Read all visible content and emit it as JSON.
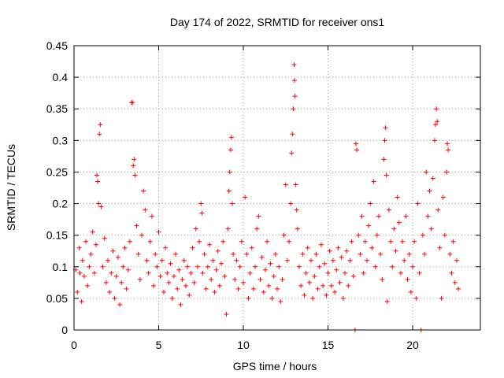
{
  "chart_data": {
    "type": "scatter",
    "title": "Day 174 of 2022, SRMTID for receiver ons1",
    "xlabel": "GPS time / hours",
    "ylabel": "SRMTID / TECUs",
    "xlim": [
      0,
      24
    ],
    "ylim": [
      0,
      0.45
    ],
    "x_ticks": [
      0,
      5,
      10,
      15,
      20
    ],
    "x_tick_labels": [
      "0",
      "5",
      "10",
      "15",
      "20"
    ],
    "y_ticks": [
      0,
      0.05,
      0.1,
      0.15,
      0.2,
      0.25,
      0.3,
      0.35,
      0.4,
      0.45
    ],
    "y_tick_labels": [
      "0",
      "0.05",
      "0.1",
      "0.15",
      "0.2",
      "0.25",
      "0.3",
      "0.35",
      "0.4",
      "0.45"
    ],
    "grid": true,
    "marker": "+",
    "color": "#ff0000",
    "series": [
      {
        "name": "SRMTID",
        "points": [
          [
            0.1,
            0.095
          ],
          [
            0.2,
            0.06
          ],
          [
            0.3,
            0.13
          ],
          [
            0.35,
            0.09
          ],
          [
            0.45,
            0.045
          ],
          [
            0.5,
            0.11
          ],
          [
            0.6,
            0.085
          ],
          [
            0.7,
            0.14
          ],
          [
            0.8,
            0.07
          ],
          [
            0.9,
            0.1
          ],
          [
            1.0,
            0.12
          ],
          [
            1.1,
            0.155
          ],
          [
            1.2,
            0.09
          ],
          [
            1.3,
            0.135
          ],
          [
            1.35,
            0.245
          ],
          [
            1.4,
            0.235
          ],
          [
            1.45,
            0.2
          ],
          [
            1.5,
            0.31
          ],
          [
            1.55,
            0.325
          ],
          [
            1.6,
            0.195
          ],
          [
            1.7,
            0.1
          ],
          [
            1.8,
            0.145
          ],
          [
            1.9,
            0.075
          ],
          [
            2.0,
            0.11
          ],
          [
            2.1,
            0.06
          ],
          [
            2.2,
            0.09
          ],
          [
            2.3,
            0.125
          ],
          [
            2.4,
            0.05
          ],
          [
            2.5,
            0.085
          ],
          [
            2.6,
            0.115
          ],
          [
            2.7,
            0.04
          ],
          [
            2.8,
            0.075
          ],
          [
            2.9,
            0.1
          ],
          [
            3.0,
            0.13
          ],
          [
            3.1,
            0.065
          ],
          [
            3.2,
            0.095
          ],
          [
            3.3,
            0.14
          ],
          [
            3.4,
            0.36
          ],
          [
            3.45,
            0.36
          ],
          [
            3.5,
            0.26
          ],
          [
            3.55,
            0.27
          ],
          [
            3.6,
            0.245
          ],
          [
            3.7,
            0.165
          ],
          [
            3.8,
            0.12
          ],
          [
            3.9,
            0.08
          ],
          [
            4.0,
            0.15
          ],
          [
            4.1,
            0.22
          ],
          [
            4.2,
            0.19
          ],
          [
            4.3,
            0.11
          ],
          [
            4.4,
            0.09
          ],
          [
            4.5,
            0.14
          ],
          [
            4.6,
            0.18
          ],
          [
            4.7,
            0.07
          ],
          [
            4.8,
            0.12
          ],
          [
            4.9,
            0.1
          ],
          [
            5.0,
            0.155
          ],
          [
            5.1,
            0.085
          ],
          [
            5.2,
            0.11
          ],
          [
            5.3,
            0.06
          ],
          [
            5.4,
            0.13
          ],
          [
            5.5,
            0.09
          ],
          [
            5.6,
            0.075
          ],
          [
            5.7,
            0.105
          ],
          [
            5.8,
            0.05
          ],
          [
            5.9,
            0.085
          ],
          [
            6.0,
            0.12
          ],
          [
            6.1,
            0.065
          ],
          [
            6.2,
            0.095
          ],
          [
            6.3,
            0.04
          ],
          [
            6.4,
            0.08
          ],
          [
            6.5,
            0.11
          ],
          [
            6.6,
            0.07
          ],
          [
            6.7,
            0.1
          ],
          [
            6.8,
            0.055
          ],
          [
            6.9,
            0.09
          ],
          [
            7.0,
            0.13
          ],
          [
            7.1,
            0.075
          ],
          [
            7.2,
            0.16
          ],
          [
            7.3,
            0.1
          ],
          [
            7.4,
            0.14
          ],
          [
            7.5,
            0.2
          ],
          [
            7.55,
            0.185
          ],
          [
            7.6,
            0.09
          ],
          [
            7.7,
            0.12
          ],
          [
            7.8,
            0.065
          ],
          [
            7.9,
            0.1
          ],
          [
            8.0,
            0.135
          ],
          [
            8.1,
            0.08
          ],
          [
            8.2,
            0.11
          ],
          [
            8.3,
            0.06
          ],
          [
            8.4,
            0.095
          ],
          [
            8.5,
            0.125
          ],
          [
            8.6,
            0.07
          ],
          [
            8.7,
            0.105
          ],
          [
            8.8,
            0.14
          ],
          [
            8.9,
            0.085
          ],
          [
            9.0,
            0.025
          ],
          [
            9.1,
            0.16
          ],
          [
            9.15,
            0.22
          ],
          [
            9.2,
            0.25
          ],
          [
            9.25,
            0.285
          ],
          [
            9.3,
            0.305
          ],
          [
            9.35,
            0.2
          ],
          [
            9.4,
            0.12
          ],
          [
            9.5,
            0.08
          ],
          [
            9.6,
            0.11
          ],
          [
            9.7,
            0.065
          ],
          [
            9.8,
            0.1
          ],
          [
            9.9,
            0.14
          ],
          [
            10.0,
            0.075
          ],
          [
            10.1,
            0.21
          ],
          [
            10.2,
            0.12
          ],
          [
            10.3,
            0.05
          ],
          [
            10.4,
            0.09
          ],
          [
            10.5,
            0.13
          ],
          [
            10.6,
            0.065
          ],
          [
            10.7,
            0.1
          ],
          [
            10.8,
            0.16
          ],
          [
            10.9,
            0.18
          ],
          [
            11.0,
            0.08
          ],
          [
            11.1,
            0.115
          ],
          [
            11.2,
            0.06
          ],
          [
            11.3,
            0.095
          ],
          [
            11.4,
            0.14
          ],
          [
            11.5,
            0.07
          ],
          [
            11.6,
            0.105
          ],
          [
            11.7,
            0.05
          ],
          [
            11.8,
            0.085
          ],
          [
            11.9,
            0.12
          ],
          [
            12.0,
            0.065
          ],
          [
            12.1,
            0.1
          ],
          [
            12.2,
            0.045
          ],
          [
            12.3,
            0.08
          ],
          [
            12.4,
            0.15
          ],
          [
            12.5,
            0.23
          ],
          [
            12.6,
            0.11
          ],
          [
            12.7,
            0.14
          ],
          [
            12.8,
            0.2
          ],
          [
            12.85,
            0.28
          ],
          [
            12.9,
            0.31
          ],
          [
            12.95,
            0.35
          ],
          [
            13.0,
            0.42
          ],
          [
            13.02,
            0.395
          ],
          [
            13.05,
            0.37
          ],
          [
            13.1,
            0.23
          ],
          [
            13.15,
            0.19
          ],
          [
            13.2,
            0.16
          ],
          [
            13.3,
            0.1
          ],
          [
            13.4,
            0.07
          ],
          [
            13.5,
            0.12
          ],
          [
            13.6,
            0.055
          ],
          [
            13.7,
            0.09
          ],
          [
            13.8,
            0.13
          ],
          [
            13.9,
            0.075
          ],
          [
            14.0,
            0.11
          ],
          [
            14.1,
            0.05
          ],
          [
            14.2,
            0.085
          ],
          [
            14.3,
            0.12
          ],
          [
            14.4,
            0.065
          ],
          [
            14.5,
            0.1
          ],
          [
            14.6,
            0.135
          ],
          [
            14.7,
            0.07
          ],
          [
            14.8,
            0.105
          ],
          [
            14.9,
            0.055
          ],
          [
            15.0,
            0.09
          ],
          [
            15.1,
            0.125
          ],
          [
            15.2,
            0.07
          ],
          [
            15.3,
            0.11
          ],
          [
            15.4,
            0.06
          ],
          [
            15.5,
            0.095
          ],
          [
            15.6,
            0.13
          ],
          [
            15.7,
            0.075
          ],
          [
            15.8,
            0.115
          ],
          [
            15.9,
            0.05
          ],
          [
            16.0,
            0.09
          ],
          [
            16.1,
            0.125
          ],
          [
            16.2,
            0.07
          ],
          [
            16.3,
            0.11
          ],
          [
            16.4,
            0.14
          ],
          [
            16.5,
            0.085
          ],
          [
            16.6,
            0.0
          ],
          [
            16.65,
            0.295
          ],
          [
            16.7,
            0.285
          ],
          [
            16.8,
            0.15
          ],
          [
            16.9,
            0.12
          ],
          [
            17.0,
            0.18
          ],
          [
            17.1,
            0.09
          ],
          [
            17.2,
            0.14
          ],
          [
            17.3,
            0.11
          ],
          [
            17.4,
            0.165
          ],
          [
            17.5,
            0.2
          ],
          [
            17.6,
            0.13
          ],
          [
            17.7,
            0.235
          ],
          [
            17.8,
            0.1
          ],
          [
            17.9,
            0.15
          ],
          [
            18.0,
            0.18
          ],
          [
            18.1,
            0.12
          ],
          [
            18.2,
            0.08
          ],
          [
            18.3,
            0.27
          ],
          [
            18.35,
            0.3
          ],
          [
            18.4,
            0.32
          ],
          [
            18.45,
            0.245
          ],
          [
            18.5,
            0.045
          ],
          [
            18.6,
            0.19
          ],
          [
            18.7,
            0.14
          ],
          [
            18.8,
            0.1
          ],
          [
            18.9,
            0.16
          ],
          [
            19.0,
            0.125
          ],
          [
            19.1,
            0.21
          ],
          [
            19.2,
            0.17
          ],
          [
            19.3,
            0.09
          ],
          [
            19.4,
            0.14
          ],
          [
            19.5,
            0.11
          ],
          [
            19.6,
            0.18
          ],
          [
            19.7,
            0.08
          ],
          [
            19.8,
            0.12
          ],
          [
            19.9,
            0.06
          ],
          [
            20.0,
            0.1
          ],
          [
            20.1,
            0.14
          ],
          [
            20.2,
            0.05
          ],
          [
            20.3,
            0.2
          ],
          [
            20.4,
            0.09
          ],
          [
            20.5,
            0.0
          ],
          [
            20.6,
            0.15
          ],
          [
            20.7,
            0.12
          ],
          [
            20.8,
            0.25
          ],
          [
            20.9,
            0.18
          ],
          [
            21.0,
            0.22
          ],
          [
            21.1,
            0.16
          ],
          [
            21.2,
            0.24
          ],
          [
            21.3,
            0.3
          ],
          [
            21.35,
            0.325
          ],
          [
            21.4,
            0.35
          ],
          [
            21.45,
            0.33
          ],
          [
            21.5,
            0.19
          ],
          [
            21.6,
            0.13
          ],
          [
            21.7,
            0.05
          ],
          [
            21.8,
            0.21
          ],
          [
            21.9,
            0.15
          ],
          [
            22.0,
            0.25
          ],
          [
            22.05,
            0.295
          ],
          [
            22.1,
            0.285
          ],
          [
            22.2,
            0.12
          ],
          [
            22.3,
            0.09
          ],
          [
            22.4,
            0.14
          ],
          [
            22.5,
            0.075
          ],
          [
            22.6,
            0.11
          ],
          [
            22.7,
            0.065
          ]
        ]
      }
    ]
  }
}
